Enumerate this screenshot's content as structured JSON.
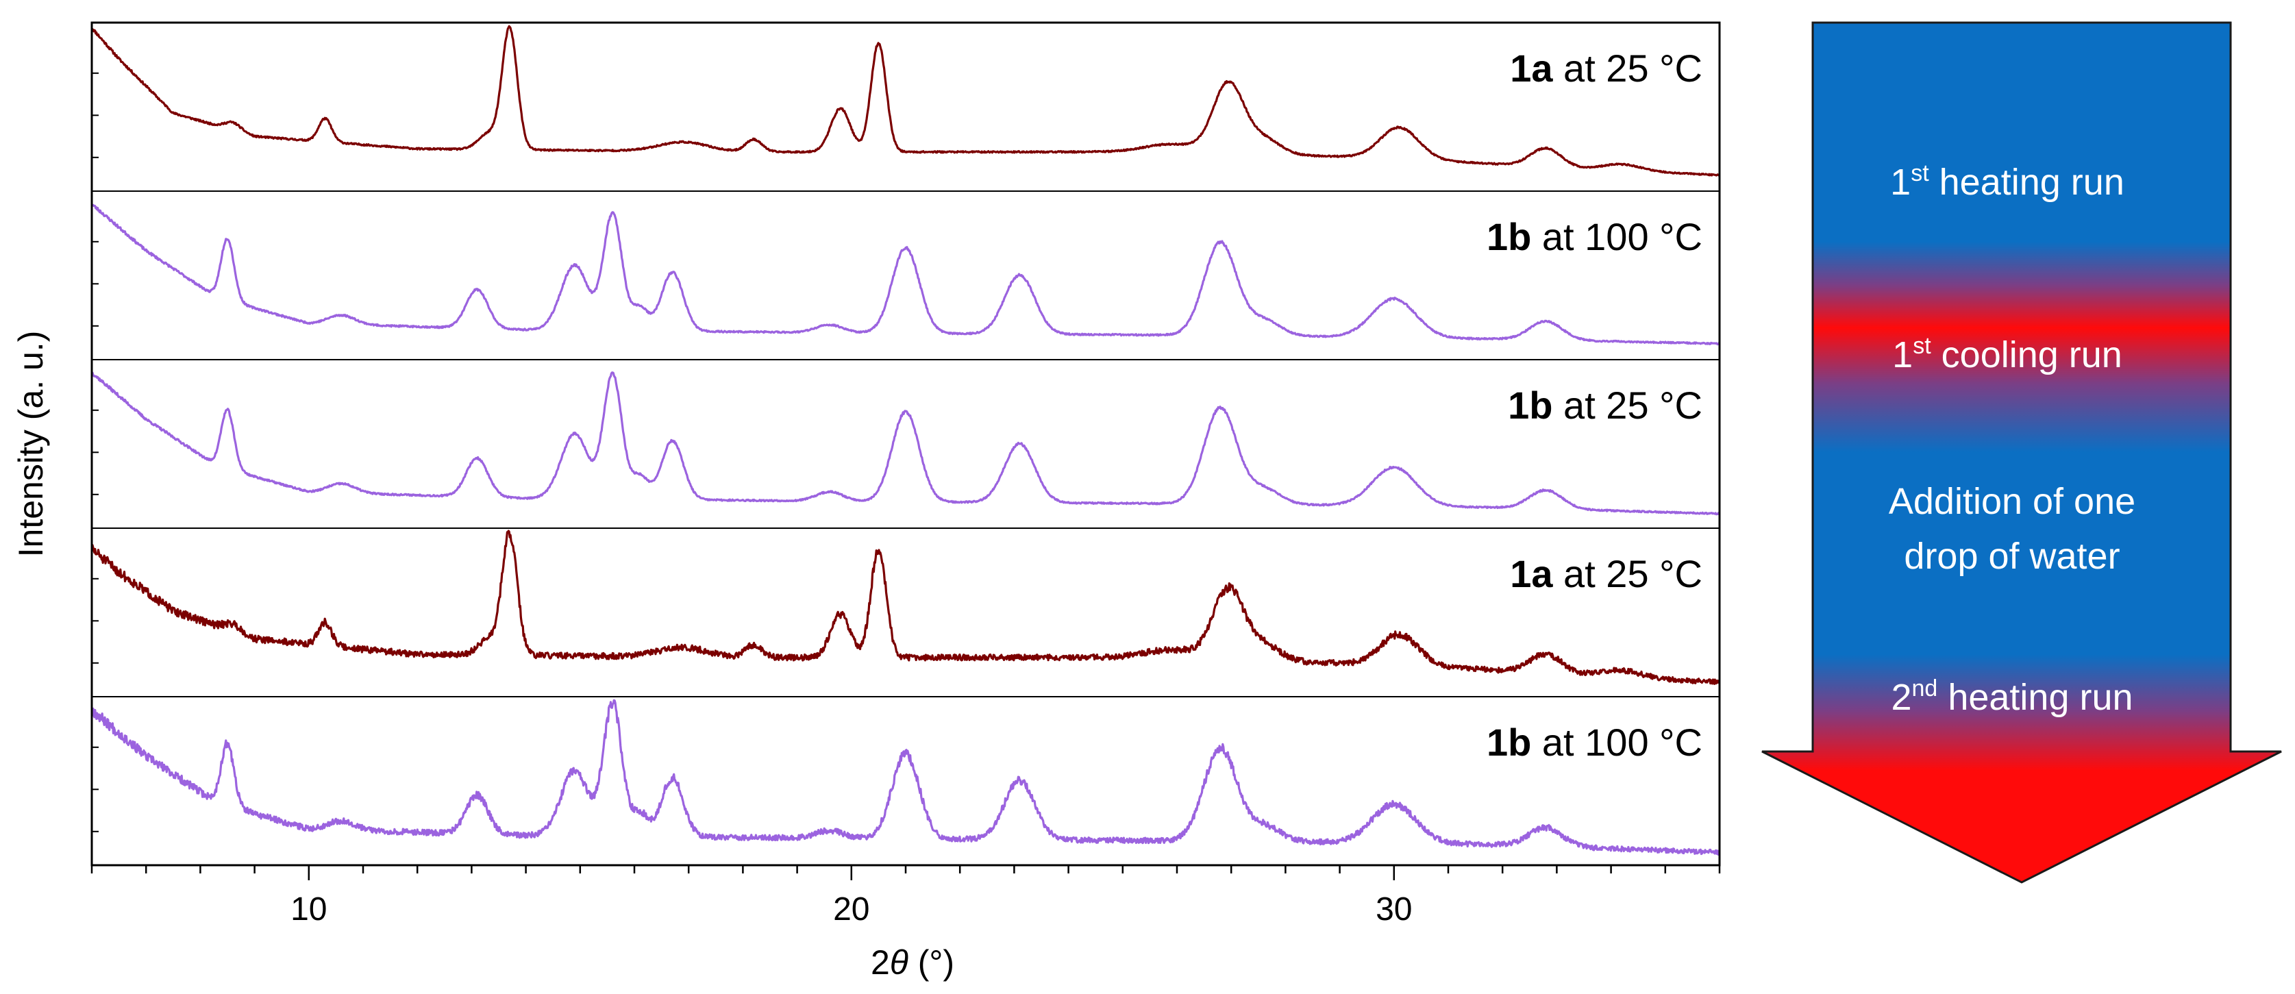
{
  "chart_data": {
    "type": "line",
    "xlabel_prefix": "2",
    "xlabel_symbol": "θ",
    "xlabel_suffix": " (°)",
    "ylabel": "Intensity (a. u.)",
    "xlim": [
      6,
      36
    ],
    "xticks": [
      10,
      20,
      30
    ],
    "xtick_labels": [
      "10",
      "20",
      "30"
    ],
    "minor_tick_step": 1,
    "series": [
      {
        "name": "1a at 25 °C",
        "compound": "1a",
        "label_rest": " at 25 °C",
        "color": "#7b0000",
        "noise": 0.8,
        "seed": 11,
        "baseline": [
          [
            6,
            1.0
          ],
          [
            6.5,
            0.8
          ],
          [
            7.5,
            0.45
          ],
          [
            9,
            0.3
          ],
          [
            12,
            0.22
          ],
          [
            18,
            0.2
          ],
          [
            26,
            0.2
          ],
          [
            30,
            0.16
          ],
          [
            33,
            0.1
          ],
          [
            36,
            0.05
          ]
        ],
        "peaks": [
          [
            8.6,
            0.05,
            0.15
          ],
          [
            10.3,
            0.15,
            0.12
          ],
          [
            13.3,
            0.1,
            0.18
          ],
          [
            13.7,
            0.78,
            0.14
          ],
          [
            16.9,
            0.06,
            0.45
          ],
          [
            18.2,
            0.08,
            0.15
          ],
          [
            19.8,
            0.28,
            0.18
          ],
          [
            20.5,
            0.7,
            0.14
          ],
          [
            25.9,
            0.05,
            0.5
          ],
          [
            26.95,
            0.45,
            0.28
          ],
          [
            27.6,
            0.1,
            0.3
          ],
          [
            30.1,
            0.2,
            0.35
          ],
          [
            32.8,
            0.12,
            0.28
          ],
          [
            34.2,
            0.04,
            0.35
          ]
        ]
      },
      {
        "name": "1b at 100 °C",
        "compound": "1b",
        "label_rest": " at 100 °C",
        "color": "#9b63df",
        "noise": 0.9,
        "seed": 23,
        "baseline": [
          [
            6,
            0.95
          ],
          [
            7,
            0.65
          ],
          [
            8.3,
            0.35
          ],
          [
            10,
            0.18
          ],
          [
            14,
            0.14
          ],
          [
            20,
            0.12
          ],
          [
            28,
            0.1
          ],
          [
            32,
            0.08
          ],
          [
            36,
            0.05
          ]
        ],
        "peaks": [
          [
            8.5,
            0.4,
            0.12
          ],
          [
            10.6,
            0.06,
            0.25
          ],
          [
            13.1,
            0.25,
            0.2
          ],
          [
            14.9,
            0.42,
            0.25
          ],
          [
            15.6,
            0.75,
            0.17
          ],
          [
            16.1,
            0.15,
            0.15
          ],
          [
            16.7,
            0.38,
            0.2
          ],
          [
            19.6,
            0.05,
            0.25
          ],
          [
            21.0,
            0.55,
            0.25
          ],
          [
            23.1,
            0.38,
            0.28
          ],
          [
            26.8,
            0.6,
            0.3
          ],
          [
            27.6,
            0.1,
            0.3
          ],
          [
            30.0,
            0.25,
            0.4
          ],
          [
            32.8,
            0.12,
            0.3
          ]
        ]
      },
      {
        "name": "1b at 25 °C",
        "compound": "1b",
        "label_rest": " at 25 °C",
        "color": "#9b63df",
        "noise": 0.9,
        "seed": 37,
        "baseline": [
          [
            6,
            0.95
          ],
          [
            7,
            0.65
          ],
          [
            8.3,
            0.35
          ],
          [
            10,
            0.18
          ],
          [
            14,
            0.14
          ],
          [
            20,
            0.12
          ],
          [
            28,
            0.1
          ],
          [
            32,
            0.08
          ],
          [
            36,
            0.04
          ]
        ],
        "peaks": [
          [
            8.5,
            0.38,
            0.12
          ],
          [
            10.6,
            0.06,
            0.25
          ],
          [
            13.1,
            0.25,
            0.2
          ],
          [
            14.9,
            0.42,
            0.25
          ],
          [
            15.6,
            0.8,
            0.17
          ],
          [
            16.1,
            0.15,
            0.15
          ],
          [
            16.7,
            0.38,
            0.2
          ],
          [
            19.6,
            0.06,
            0.25
          ],
          [
            21.0,
            0.58,
            0.25
          ],
          [
            23.1,
            0.38,
            0.28
          ],
          [
            26.8,
            0.62,
            0.3
          ],
          [
            27.6,
            0.1,
            0.3
          ],
          [
            30.0,
            0.25,
            0.4
          ],
          [
            32.8,
            0.12,
            0.3
          ]
        ]
      },
      {
        "name": "1a at 25 °C",
        "compound": "1a",
        "label_rest": " at 25 °C",
        "color": "#7b0000",
        "noise": 3.2,
        "seed": 51,
        "baseline": [
          [
            6,
            0.9
          ],
          [
            6.5,
            0.75
          ],
          [
            7.5,
            0.5
          ],
          [
            9,
            0.32
          ],
          [
            12,
            0.22
          ],
          [
            18,
            0.2
          ],
          [
            26,
            0.2
          ],
          [
            30,
            0.15
          ],
          [
            33,
            0.1
          ],
          [
            36,
            0.04
          ]
        ],
        "peaks": [
          [
            8.6,
            0.05,
            0.15
          ],
          [
            10.3,
            0.15,
            0.12
          ],
          [
            13.3,
            0.1,
            0.18
          ],
          [
            13.7,
            0.78,
            0.14
          ],
          [
            16.9,
            0.06,
            0.45
          ],
          [
            18.2,
            0.08,
            0.15
          ],
          [
            19.8,
            0.28,
            0.18
          ],
          [
            20.5,
            0.7,
            0.14
          ],
          [
            25.9,
            0.05,
            0.5
          ],
          [
            26.95,
            0.45,
            0.28
          ],
          [
            27.6,
            0.1,
            0.3
          ],
          [
            30.1,
            0.2,
            0.35
          ],
          [
            32.8,
            0.12,
            0.28
          ],
          [
            34.2,
            0.04,
            0.35
          ]
        ]
      },
      {
        "name": "1b at 100 °C",
        "compound": "1b",
        "label_rest": " at 100 °C",
        "color": "#9b63df",
        "noise": 3.2,
        "seed": 67,
        "baseline": [
          [
            6,
            0.95
          ],
          [
            7,
            0.65
          ],
          [
            8.3,
            0.35
          ],
          [
            10,
            0.18
          ],
          [
            14,
            0.14
          ],
          [
            20,
            0.12
          ],
          [
            28,
            0.1
          ],
          [
            32,
            0.08
          ],
          [
            36,
            0.03
          ]
        ],
        "peaks": [
          [
            8.5,
            0.4,
            0.12
          ],
          [
            10.6,
            0.06,
            0.25
          ],
          [
            13.1,
            0.25,
            0.2
          ],
          [
            14.9,
            0.42,
            0.25
          ],
          [
            15.6,
            0.85,
            0.17
          ],
          [
            16.1,
            0.15,
            0.15
          ],
          [
            16.7,
            0.38,
            0.2
          ],
          [
            19.6,
            0.05,
            0.25
          ],
          [
            21.0,
            0.55,
            0.25
          ],
          [
            23.1,
            0.38,
            0.28
          ],
          [
            26.8,
            0.6,
            0.3
          ],
          [
            27.6,
            0.1,
            0.3
          ],
          [
            30.0,
            0.25,
            0.4
          ],
          [
            32.8,
            0.12,
            0.3
          ]
        ]
      }
    ]
  },
  "arrow": {
    "colors": {
      "blue": "#0b6fc3",
      "red": "#ff0a0a"
    },
    "steps": [
      {
        "main": "1",
        "sup": "st",
        "rest": " heating run"
      },
      {
        "main": "1",
        "sup": "st",
        "rest": " cooling run"
      },
      {
        "line1": "Addition of one",
        "line2": "drop of water"
      },
      {
        "main": "2",
        "sup": "nd",
        "rest": " heating run"
      }
    ]
  }
}
